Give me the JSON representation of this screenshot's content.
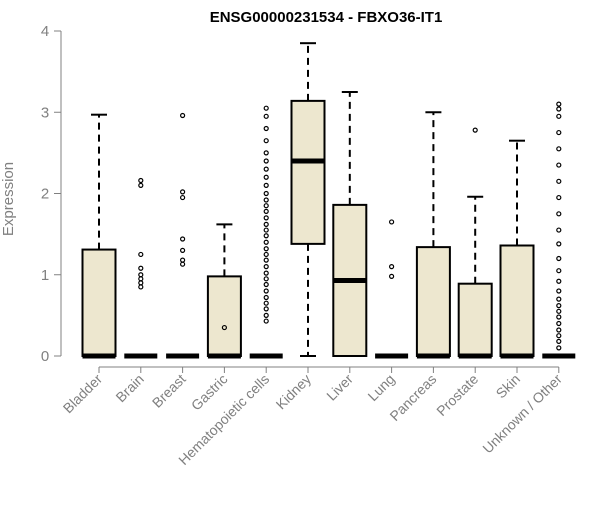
{
  "chart_data": {
    "type": "box",
    "title": "ENSG00000231534 - FBXO36-IT1",
    "xlabel": "",
    "ylabel": "Expression",
    "ylim": [
      0,
      4
    ],
    "yticks": [
      0,
      1,
      2,
      3,
      4
    ],
    "grid": false,
    "legend": "none",
    "categories": [
      "Bladder",
      "Brain",
      "Breast",
      "Gastric",
      "Hematopoietic cells",
      "Kidney",
      "Liver",
      "Lung",
      "Pancreas",
      "Prostate",
      "Skin",
      "Unknown / Other"
    ],
    "boxes": [
      {
        "q1": 0,
        "median": 0,
        "q3": 1.31,
        "whisker_low": 0,
        "whisker_high": 2.97,
        "outliers": []
      },
      {
        "q1": 0,
        "median": 0,
        "q3": 0,
        "whisker_low": 0,
        "whisker_high": 0,
        "outliers": [
          0.85,
          0.9,
          0.95,
          1.0,
          1.08,
          1.25,
          2.1,
          2.16
        ]
      },
      {
        "q1": 0,
        "median": 0,
        "q3": 0,
        "whisker_low": 0,
        "whisker_high": 0,
        "outliers": [
          1.13,
          1.18,
          1.3,
          1.44,
          1.95,
          2.02,
          2.96
        ]
      },
      {
        "q1": 0,
        "median": 0,
        "q3": 0.98,
        "whisker_low": 0,
        "whisker_high": 1.62,
        "outliers": [
          0.35
        ]
      },
      {
        "q1": 0,
        "median": 0,
        "q3": 0,
        "whisker_low": 0,
        "whisker_high": 0,
        "outliers": [
          0.43,
          0.5,
          0.58,
          0.65,
          0.72,
          0.8,
          0.88,
          0.95,
          1.02,
          1.1,
          1.18,
          1.25,
          1.32,
          1.4,
          1.48,
          1.55,
          1.62,
          1.7,
          1.78,
          1.85,
          1.92,
          2.0,
          2.1,
          2.2,
          2.3,
          2.4,
          2.5,
          2.65,
          2.8,
          2.95,
          3.05
        ]
      },
      {
        "q1": 1.38,
        "median": 2.4,
        "q3": 3.14,
        "whisker_low": 0,
        "whisker_high": 3.85,
        "outliers": []
      },
      {
        "q1": 0,
        "median": 0.93,
        "q3": 1.86,
        "whisker_low": 0,
        "whisker_high": 3.25,
        "outliers": []
      },
      {
        "q1": 0,
        "median": 0,
        "q3": 0,
        "whisker_low": 0,
        "whisker_high": 0,
        "outliers": [
          0.98,
          1.1,
          1.65
        ]
      },
      {
        "q1": 0,
        "median": 0,
        "q3": 1.34,
        "whisker_low": 0,
        "whisker_high": 3.0,
        "outliers": []
      },
      {
        "q1": 0,
        "median": 0,
        "q3": 0.89,
        "whisker_low": 0,
        "whisker_high": 1.96,
        "outliers": [
          2.78
        ]
      },
      {
        "q1": 0,
        "median": 0,
        "q3": 1.36,
        "whisker_low": 0,
        "whisker_high": 2.65,
        "outliers": []
      },
      {
        "q1": 0,
        "median": 0,
        "q3": 0,
        "whisker_low": 0,
        "whisker_high": 0,
        "outliers": [
          0.1,
          0.18,
          0.25,
          0.32,
          0.4,
          0.48,
          0.55,
          0.62,
          0.7,
          0.8,
          0.92,
          1.05,
          1.2,
          1.38,
          1.55,
          1.75,
          1.95,
          2.15,
          2.35,
          2.55,
          2.75,
          2.95,
          3.04,
          3.1
        ]
      }
    ],
    "colors": {
      "box_fill": "#ede7cf",
      "stroke": "#000000",
      "axis": "#808080",
      "label": "#808080",
      "title": "#000000"
    }
  }
}
